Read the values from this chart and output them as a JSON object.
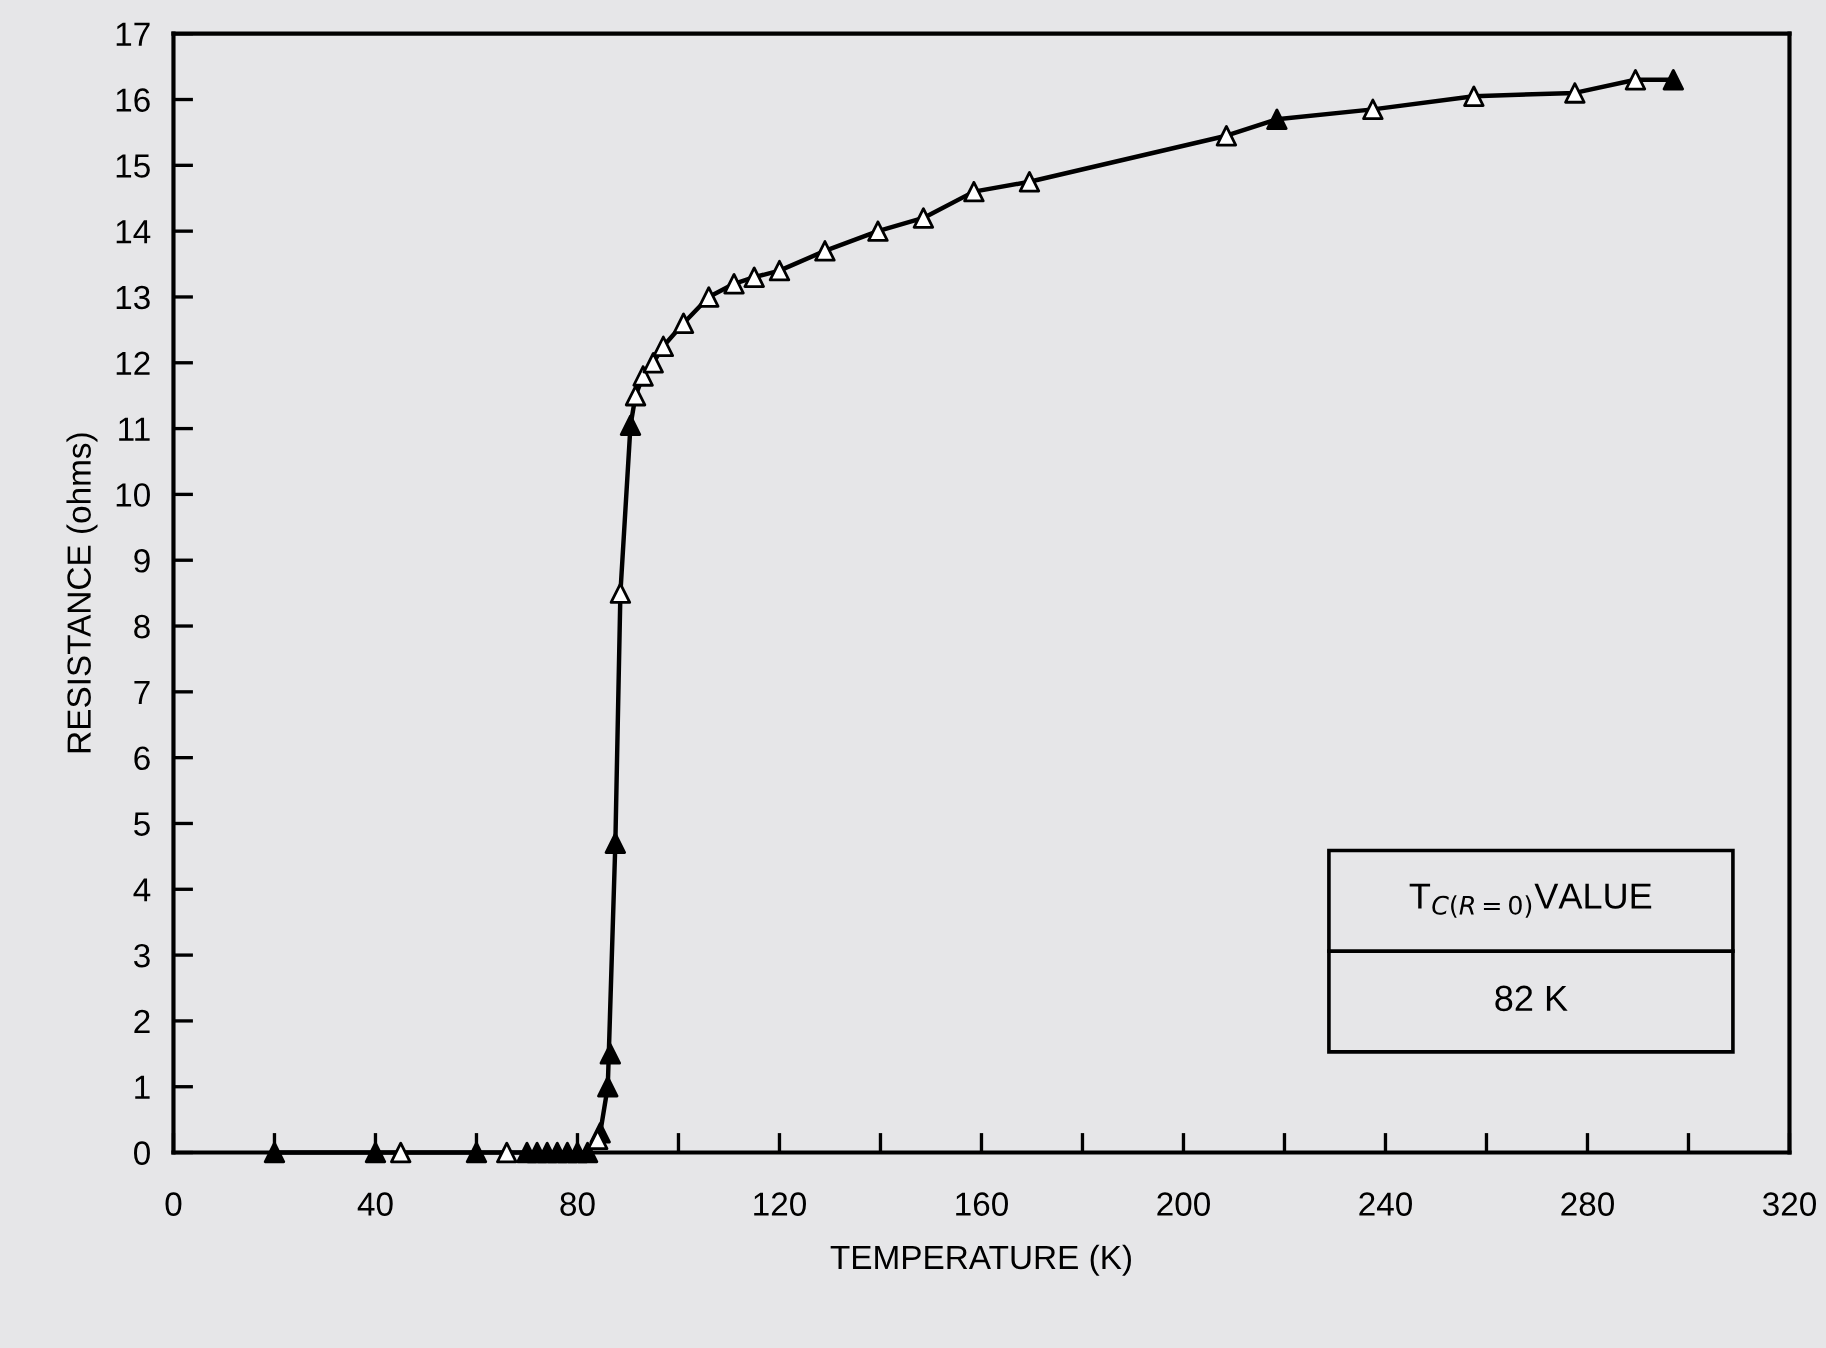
{
  "chart_data": {
    "type": "scatter",
    "xlabel": "TEMPERATURE (K)",
    "ylabel": "RESISTANCE (ohms)",
    "xlim": [
      0,
      320
    ],
    "ylim": [
      0,
      17
    ],
    "xticks": [
      0,
      {
        "value": 20,
        "label": null
      },
      40,
      {
        "value": 60,
        "label": null
      },
      80,
      {
        "value": 100,
        "label": null
      },
      120,
      {
        "value": 140,
        "label": null
      },
      160,
      {
        "value": 180,
        "label": null
      },
      200,
      {
        "value": 220,
        "label": null
      },
      240,
      {
        "value": 260,
        "label": null
      },
      280,
      {
        "value": 300,
        "label": null
      },
      320
    ],
    "yticks": [
      0,
      1,
      2,
      3,
      4,
      5,
      6,
      7,
      8,
      9,
      10,
      11,
      12,
      13,
      14,
      15,
      16,
      17
    ],
    "grid": false,
    "series": [
      {
        "type": "line",
        "color": "#000000",
        "marker": "none",
        "line_style": "solid",
        "x": [
          20,
          60,
          82,
          84.5,
          86,
          87.5,
          88.5,
          90.5,
          91.5,
          93,
          95,
          97,
          101,
          106,
          111,
          115,
          120,
          129,
          139.5,
          148.5,
          158.5,
          169.5,
          208.5,
          218.5,
          237.5,
          257.5,
          277.5,
          289.5,
          297
        ],
        "values": [
          0,
          0,
          0,
          0.3,
          1.0,
          4.7,
          8.5,
          11.05,
          11.5,
          11.8,
          12.0,
          12.25,
          12.6,
          13.0,
          13.2,
          13.3,
          13.4,
          13.7,
          14.0,
          14.2,
          14.6,
          14.75,
          15.45,
          15.7,
          15.85,
          16.05,
          16.1,
          16.3,
          16.3
        ]
      },
      {
        "color": "#000000",
        "marker": "triangle",
        "x": [
          20,
          40,
          60,
          70,
          72,
          74,
          76,
          78,
          80,
          82,
          84.5,
          86,
          86.5,
          87.5,
          90.5,
          218.5,
          297
        ],
        "values": [
          0,
          0,
          0,
          0,
          0,
          0,
          0,
          0,
          0,
          0,
          0.3,
          1.0,
          1.5,
          4.7,
          11.05,
          15.7,
          16.3
        ]
      },
      {
        "color": "#ffffff",
        "marker": "triangle",
        "x": [
          45,
          66,
          84,
          88.5,
          91.5,
          93,
          95,
          97,
          101,
          106,
          111,
          115,
          120,
          129,
          139.5,
          148.5,
          158.5,
          169.5,
          208.5,
          237.5,
          257.5,
          277.5,
          289.5
        ],
        "values": [
          0,
          0,
          0.2,
          8.5,
          11.5,
          11.8,
          12.0,
          12.25,
          12.6,
          13.0,
          13.2,
          13.3,
          13.4,
          13.7,
          14.0,
          14.2,
          14.6,
          14.75,
          15.45,
          15.85,
          16.05,
          16.1,
          16.3
        ]
      }
    ],
    "annotations": [
      "T$_{C(R=0)}$VALUE",
      "82 K"
    ]
  }
}
